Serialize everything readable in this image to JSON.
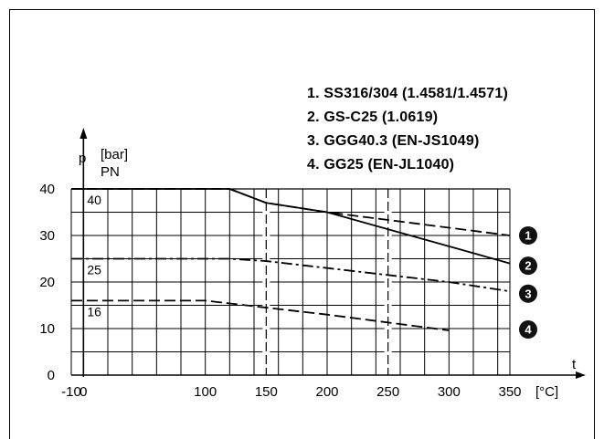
{
  "chart_data": {
    "type": "line",
    "title": "",
    "ylabel": "p",
    "yunit": "[bar]",
    "pn_header": "PN",
    "xlabel": "t",
    "xunit": "[°C]",
    "xlim": [
      -10,
      350
    ],
    "ylim": [
      0,
      40
    ],
    "x_ticks": [
      "-10",
      "0",
      "100",
      "150",
      "200",
      "250",
      "300",
      "350"
    ],
    "x_tick_values": [
      -10,
      0,
      100,
      150,
      200,
      250,
      300,
      350
    ],
    "y_ticks": [
      "0",
      "10",
      "20",
      "30",
      "40"
    ],
    "y_tick_values": [
      0,
      10,
      20,
      30,
      40
    ],
    "pn_labels": [
      {
        "text": "40",
        "value": 40
      },
      {
        "text": "25",
        "value": 25
      },
      {
        "text": "16",
        "value": 16
      }
    ],
    "grid": true,
    "marker_lines_x": [
      150,
      250
    ],
    "series": [
      {
        "name": "SS316/304 (1.4581/1.4571)",
        "marker": "1",
        "style": "dashed",
        "x": [
          -10,
          120,
          150,
          200,
          350
        ],
        "y": [
          40,
          40,
          37,
          35,
          30
        ]
      },
      {
        "name": "GS-C25 (1.0619)",
        "marker": "2",
        "style": "solid",
        "x": [
          -10,
          120,
          150,
          200,
          350
        ],
        "y": [
          40,
          40,
          37,
          35,
          24
        ]
      },
      {
        "name": "GGG40.3 (EN-JS1049)",
        "marker": "3",
        "style": "dashdot",
        "x": [
          -10,
          120,
          150,
          200,
          300,
          350
        ],
        "y": [
          25,
          25,
          24.5,
          23,
          20,
          18
        ]
      },
      {
        "name": "GG25 (EN-JL1040)",
        "marker": "4",
        "style": "dashed",
        "x": [
          -10,
          100,
          150,
          200,
          300
        ],
        "y": [
          16,
          16,
          14.5,
          13,
          9.6
        ]
      }
    ]
  },
  "legend": {
    "items": [
      "1.  SS316/304 (1.4581/1.4571)",
      "2.  GS-C25 (1.0619)",
      "3.  GGG40.3 (EN-JS1049)",
      "4.  GG25 (EN-JL1040)"
    ]
  },
  "badges": [
    "1",
    "2",
    "3",
    "4"
  ]
}
